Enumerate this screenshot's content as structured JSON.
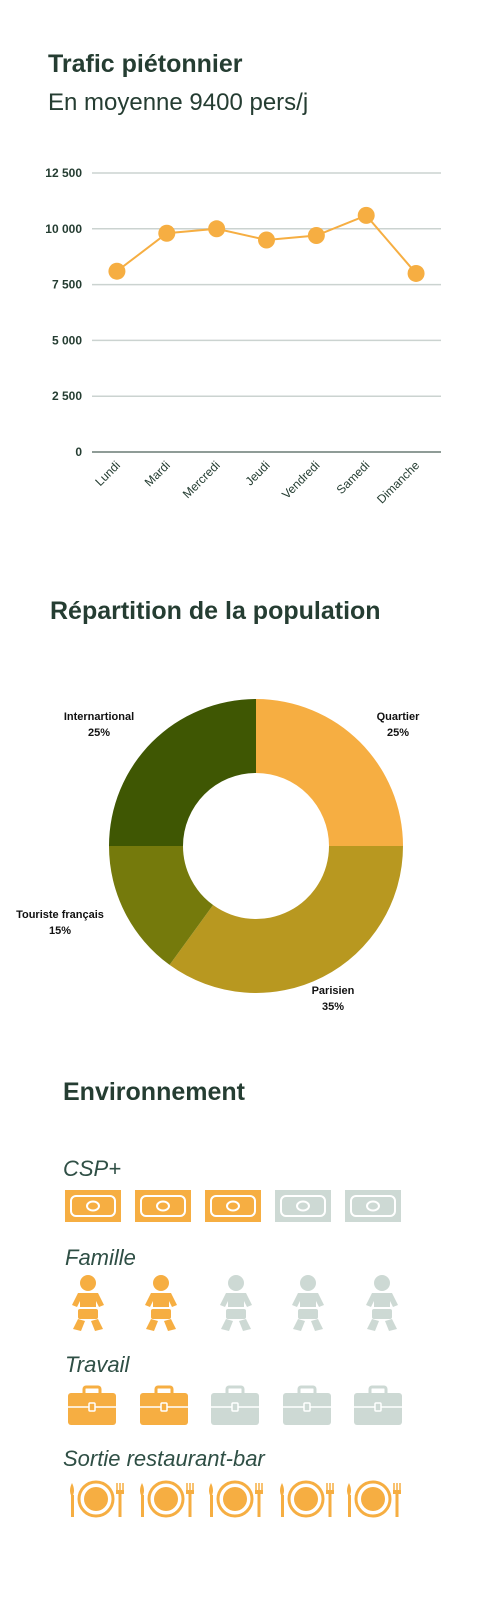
{
  "traffic": {
    "title": "Trafic piétonnier",
    "subtitle": "En moyenne 9400 pers/j"
  },
  "population": {
    "title": "Répartition de la population"
  },
  "environment": {
    "title": "Environnement",
    "categories": [
      {
        "label": "CSP+",
        "icon": "banknote-icon",
        "filled": 3,
        "total": 5
      },
      {
        "label": "Famille",
        "icon": "baby-icon",
        "filled": 2,
        "total": 5
      },
      {
        "label": "Travail",
        "icon": "briefcase-icon",
        "filled": 2,
        "total": 5
      },
      {
        "label": "Sortie restaurant-bar",
        "icon": "plate-cutlery-icon",
        "filled": 5,
        "total": 5
      }
    ]
  },
  "colors": {
    "text": "#253d32",
    "accent": "#f6ae42",
    "inactive": "#cdd9d4",
    "grid": "#cbd3d0",
    "pie": [
      "#f6ae42",
      "#b89820",
      "#757a0c",
      "#3f5703"
    ]
  },
  "chart_data": [
    {
      "type": "line",
      "categories": [
        "Lundi",
        "Mardi",
        "Mercredi",
        "Jeudi",
        "Vendredi",
        "Samedi",
        "Dimanche"
      ],
      "values": [
        8100,
        9800,
        10000,
        9500,
        9700,
        10600,
        8000
      ],
      "ylim": [
        0,
        12500
      ],
      "yticks": [
        0,
        2500,
        5000,
        7500,
        10000,
        12500
      ],
      "ytick_labels": [
        "0",
        "2 500",
        "5 000",
        "7 500",
        "10 000",
        "12 500"
      ],
      "grid": true
    },
    {
      "type": "pie",
      "donut": true,
      "slices": [
        {
          "name": "Quartier",
          "value": 25,
          "label": "25%"
        },
        {
          "name": "Parisien",
          "value": 35,
          "label": "35%"
        },
        {
          "name": "Touriste français",
          "value": 15,
          "label": "15%"
        },
        {
          "name": "Internartional",
          "value": 25,
          "label": "25%"
        }
      ]
    }
  ]
}
